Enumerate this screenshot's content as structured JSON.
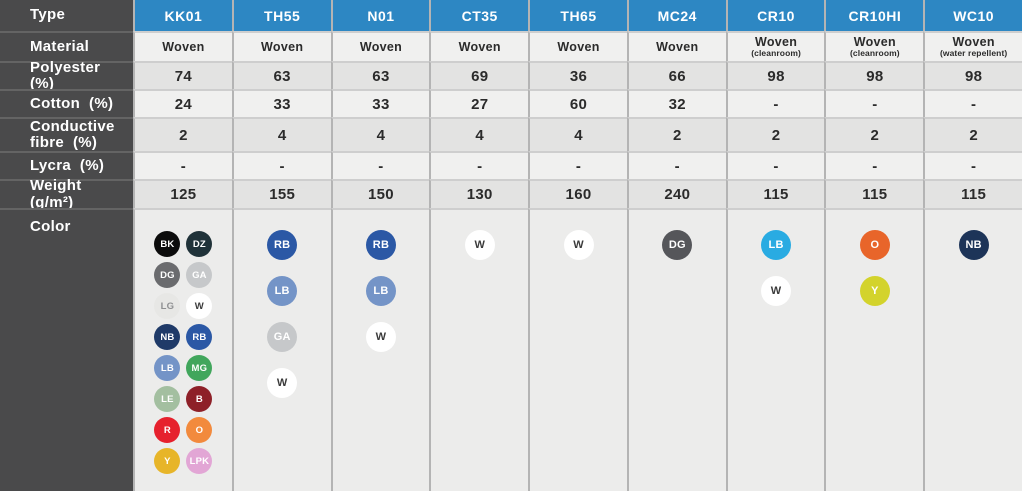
{
  "table": {
    "row_labels": {
      "type": "Type",
      "material": "Material",
      "polyester": "Polyester  (%)",
      "cotton": "Cotton  (%)",
      "conductive": "Conductive\nfibre  (%)",
      "lycra": "Lycra  (%)",
      "weight": "Weight  (g/m²)",
      "color": "Color"
    },
    "palette": {
      "header_blue": "#2d87c3",
      "label_bg": "#4a4a4b",
      "row_light": "#f0f0ef",
      "row_dark": "#e3e3e2"
    },
    "columns": [
      {
        "type": "KK01",
        "material": "Woven",
        "material_note": "",
        "polyester": "74",
        "cotton": "24",
        "conductive": "2",
        "lycra": "-",
        "weight": "125",
        "colors": [
          {
            "code": "BK",
            "bg": "#0c0c0c",
            "fg": "#ffffff"
          },
          {
            "code": "DZ",
            "bg": "#203239",
            "fg": "#ffffff"
          },
          {
            "code": "DG",
            "bg": "#6a6b6e",
            "fg": "#ffffff"
          },
          {
            "code": "GA",
            "bg": "#c6c8ca",
            "fg": "#ffffff"
          },
          {
            "code": "LG",
            "bg": "#e7e7e5",
            "fg": "#8f9092"
          },
          {
            "code": "W",
            "bg": "#ffffff",
            "fg": "#3a3a3a"
          },
          {
            "code": "NB",
            "bg": "#1f3a68",
            "fg": "#ffffff"
          },
          {
            "code": "RB",
            "bg": "#2b58a5",
            "fg": "#ffffff"
          },
          {
            "code": "LB",
            "bg": "#7494c7",
            "fg": "#ffffff"
          },
          {
            "code": "MG",
            "bg": "#41a65c",
            "fg": "#ffffff"
          },
          {
            "code": "LE",
            "bg": "#a3bfa0",
            "fg": "#ffffff"
          },
          {
            "code": "B",
            "bg": "#8e2028",
            "fg": "#ffffff"
          },
          {
            "code": "R",
            "bg": "#e6212d",
            "fg": "#ffffff"
          },
          {
            "code": "O",
            "bg": "#f28a3d",
            "fg": "#ffffff"
          },
          {
            "code": "Y",
            "bg": "#e7b529",
            "fg": "#ffffff"
          },
          {
            "code": "LPK",
            "bg": "#e2a6d5",
            "fg": "#ffffff"
          }
        ]
      },
      {
        "type": "TH55",
        "material": "Woven",
        "material_note": "",
        "polyester": "63",
        "cotton": "33",
        "conductive": "4",
        "lycra": "-",
        "weight": "155",
        "colors": [
          {
            "code": "RB",
            "bg": "#2b58a5",
            "fg": "#ffffff"
          },
          {
            "code": "LB",
            "bg": "#7494c7",
            "fg": "#ffffff"
          },
          {
            "code": "GA",
            "bg": "#c6c8ca",
            "fg": "#ffffff"
          },
          {
            "code": "W",
            "bg": "#ffffff",
            "fg": "#3a3a3a"
          }
        ]
      },
      {
        "type": "N01",
        "material": "Woven",
        "material_note": "",
        "polyester": "63",
        "cotton": "33",
        "conductive": "4",
        "lycra": "-",
        "weight": "150",
        "colors": [
          {
            "code": "RB",
            "bg": "#2b58a5",
            "fg": "#ffffff"
          },
          {
            "code": "LB",
            "bg": "#7494c7",
            "fg": "#ffffff"
          },
          {
            "code": "W",
            "bg": "#ffffff",
            "fg": "#3a3a3a"
          }
        ]
      },
      {
        "type": "CT35",
        "material": "Woven",
        "material_note": "",
        "polyester": "69",
        "cotton": "27",
        "conductive": "4",
        "lycra": "-",
        "weight": "130",
        "colors": [
          {
            "code": "W",
            "bg": "#ffffff",
            "fg": "#3a3a3a"
          }
        ]
      },
      {
        "type": "TH65",
        "material": "Woven",
        "material_note": "",
        "polyester": "36",
        "cotton": "60",
        "conductive": "4",
        "lycra": "-",
        "weight": "160",
        "colors": [
          {
            "code": "W",
            "bg": "#ffffff",
            "fg": "#3a3a3a"
          }
        ]
      },
      {
        "type": "MC24",
        "material": "Woven",
        "material_note": "",
        "polyester": "66",
        "cotton": "32",
        "conductive": "2",
        "lycra": "-",
        "weight": "240",
        "colors": [
          {
            "code": "DG",
            "bg": "#55565a",
            "fg": "#ffffff"
          }
        ]
      },
      {
        "type": "CR10",
        "material": "Woven",
        "material_note": "(cleanroom)",
        "polyester": "98",
        "cotton": "-",
        "conductive": "2",
        "lycra": "-",
        "weight": "115",
        "colors": [
          {
            "code": "LB",
            "bg": "#29abe2",
            "fg": "#ffffff"
          },
          {
            "code": "W",
            "bg": "#ffffff",
            "fg": "#3a3a3a"
          }
        ]
      },
      {
        "type": "CR10HI",
        "material": "Woven",
        "material_note": "(cleanroom)",
        "polyester": "98",
        "cotton": "-",
        "conductive": "2",
        "lycra": "-",
        "weight": "115",
        "colors": [
          {
            "code": "O",
            "bg": "#e8652a",
            "fg": "#ffffff"
          },
          {
            "code": "Y",
            "bg": "#d3d32c",
            "fg": "#ffffff"
          }
        ]
      },
      {
        "type": "WC10",
        "material": "Woven",
        "material_note": "(water repellent)",
        "polyester": "98",
        "cotton": "-",
        "conductive": "2",
        "lycra": "-",
        "weight": "115",
        "colors": [
          {
            "code": "NB",
            "bg": "#1d3458",
            "fg": "#ffffff"
          }
        ]
      }
    ]
  }
}
